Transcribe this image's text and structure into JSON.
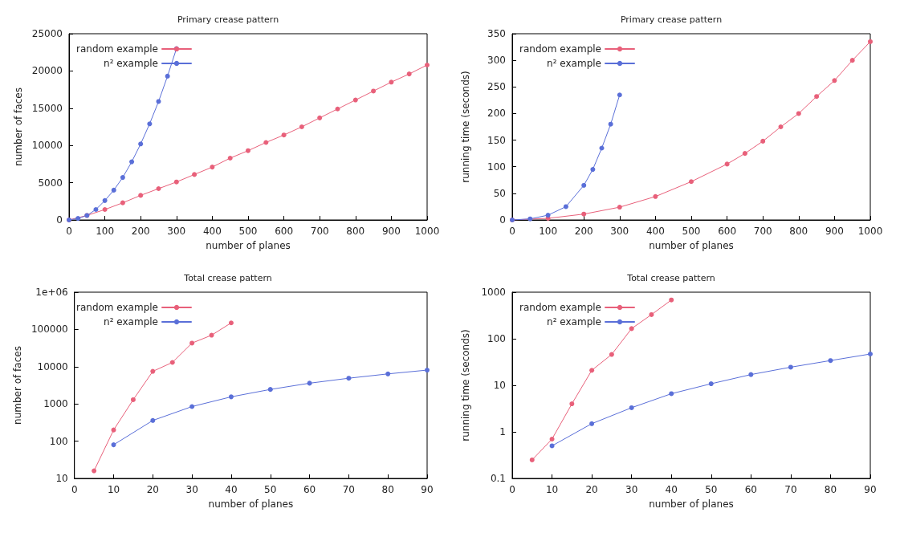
{
  "chart_data": [
    {
      "type": "line",
      "title": "Primary crease pattern",
      "xlabel": "number of planes",
      "ylabel": "number of faces",
      "xlim": [
        0,
        1000
      ],
      "ylim": [
        0,
        25000
      ],
      "xticks": [
        0,
        100,
        200,
        300,
        400,
        500,
        600,
        700,
        800,
        900,
        1000
      ],
      "yticks": [
        0,
        5000,
        10000,
        15000,
        20000,
        25000
      ],
      "legend": "top left",
      "marker": "circle",
      "series": [
        {
          "name": "random example",
          "color": "#e8607a",
          "x": [
            0,
            50,
            100,
            150,
            200,
            250,
            300,
            350,
            400,
            450,
            500,
            550,
            600,
            650,
            700,
            750,
            800,
            850,
            900,
            950,
            1000
          ],
          "values": [
            0,
            600,
            1400,
            2300,
            3300,
            4200,
            5100,
            6100,
            7100,
            8300,
            9300,
            10400,
            11400,
            12500,
            13700,
            14900,
            16100,
            17300,
            18500,
            19600,
            20800
          ]
        },
        {
          "name": "n² example",
          "color": "#5a6fd8",
          "x": [
            0,
            25,
            50,
            75,
            100,
            125,
            150,
            175,
            200,
            225,
            250,
            275,
            300
          ],
          "values": [
            0,
            200,
            600,
            1400,
            2600,
            4000,
            5700,
            7800,
            10200,
            12900,
            15900,
            19300,
            23000
          ]
        }
      ]
    },
    {
      "type": "line",
      "title": "Primary crease pattern",
      "xlabel": "number of planes",
      "ylabel": "running time (seconds)",
      "xlim": [
        0,
        1000
      ],
      "ylim": [
        0,
        350
      ],
      "xticks": [
        0,
        100,
        200,
        300,
        400,
        500,
        600,
        700,
        800,
        900,
        1000
      ],
      "yticks": [
        0,
        50,
        100,
        150,
        200,
        250,
        300,
        350
      ],
      "legend": "top left",
      "marker": "circle",
      "series": [
        {
          "name": "random example",
          "color": "#e8607a",
          "x": [
            0,
            100,
            200,
            300,
            400,
            500,
            600,
            650,
            700,
            750,
            800,
            850,
            900,
            950,
            1000
          ],
          "values": [
            0,
            3,
            11,
            24,
            44,
            72,
            105,
            125,
            148,
            175,
            200,
            232,
            262,
            300,
            335
          ]
        },
        {
          "name": "n² example",
          "color": "#5a6fd8",
          "x": [
            0,
            50,
            100,
            150,
            200,
            225,
            250,
            275,
            300
          ],
          "values": [
            0,
            2,
            9,
            25,
            65,
            95,
            135,
            180,
            235
          ]
        }
      ]
    },
    {
      "type": "line",
      "title": "Total crease pattern",
      "xlabel": "number of planes",
      "ylabel": "number of faces",
      "xlim": [
        0,
        90
      ],
      "ylim": [
        10,
        1000000
      ],
      "xticks": [
        0,
        10,
        20,
        30,
        40,
        50,
        60,
        70,
        80,
        90
      ],
      "yticks": [
        10,
        100,
        1000,
        10000,
        100000,
        {
          "value": 1000000,
          "label": "1e+06"
        }
      ],
      "log": true,
      "legend": "top left",
      "marker": "circle",
      "series": [
        {
          "name": "random example",
          "color": "#e8607a",
          "x": [
            5,
            10,
            15,
            20,
            25,
            30,
            35,
            40
          ],
          "values": [
            16,
            200,
            1300,
            7500,
            13000,
            43000,
            70000,
            150000
          ]
        },
        {
          "name": "n² example",
          "color": "#5a6fd8",
          "x": [
            10,
            20,
            30,
            40,
            50,
            60,
            70,
            80,
            90
          ],
          "values": [
            80,
            360,
            850,
            1550,
            2450,
            3600,
            4900,
            6400,
            8100
          ]
        }
      ]
    },
    {
      "type": "line",
      "title": "Total crease pattern",
      "xlabel": "number of planes",
      "ylabel": "running time (seconds)",
      "xlim": [
        0,
        90
      ],
      "ylim": [
        0.1,
        1000
      ],
      "xticks": [
        0,
        10,
        20,
        30,
        40,
        50,
        60,
        70,
        80,
        90
      ],
      "yticks": [
        0.1,
        1,
        10,
        100,
        1000
      ],
      "log": true,
      "legend": "top left",
      "marker": "circle",
      "series": [
        {
          "name": "random example",
          "color": "#e8607a",
          "x": [
            5,
            10,
            15,
            20,
            25,
            30,
            35,
            40
          ],
          "values": [
            0.25,
            0.7,
            4,
            21,
            46,
            165,
            330,
            680
          ]
        },
        {
          "name": "n² example",
          "color": "#5a6fd8",
          "x": [
            10,
            20,
            30,
            40,
            50,
            60,
            70,
            80,
            90
          ],
          "values": [
            0.5,
            1.5,
            3.3,
            6.6,
            10.8,
            17,
            24.5,
            34,
            47
          ]
        }
      ]
    }
  ]
}
